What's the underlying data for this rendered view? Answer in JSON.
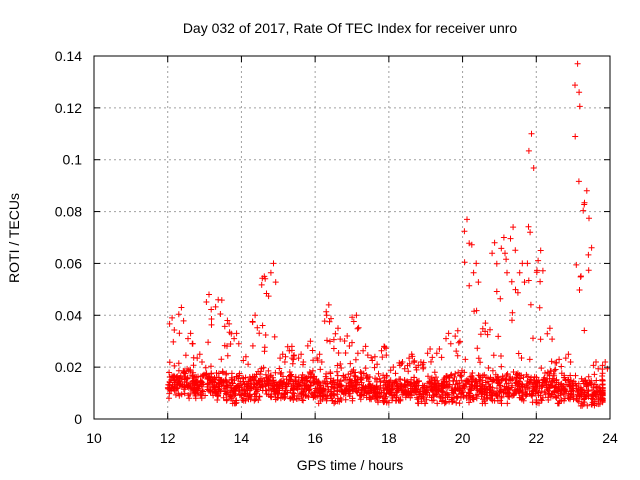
{
  "chart_data": {
    "type": "scatter",
    "title": "Day 032 of 2017, Rate Of TEC Index for receiver unro",
    "xlabel": "GPS time / hours",
    "ylabel": "ROTI / TECUs",
    "xlim": [
      10,
      24
    ],
    "ylim": [
      0,
      0.14
    ],
    "xticks": [
      "10",
      "12",
      "14",
      "16",
      "18",
      "20",
      "22",
      "24"
    ],
    "yticks": [
      "0",
      "0.02",
      "0.04",
      "0.06",
      "0.08",
      "0.1",
      "0.12",
      "0.14"
    ],
    "grid": true,
    "marker": "+",
    "color": "#ff0000",
    "profile_hours": [
      12.0,
      12.25,
      12.5,
      12.75,
      13.0,
      13.25,
      13.5,
      13.75,
      14.0,
      14.25,
      14.5,
      14.75,
      15.0,
      15.25,
      15.5,
      15.75,
      16.0,
      16.25,
      16.5,
      16.75,
      17.0,
      17.25,
      17.5,
      17.75,
      18.0,
      18.25,
      18.5,
      18.75,
      19.0,
      19.25,
      19.5,
      19.75,
      20.0,
      20.25,
      20.5,
      20.75,
      21.0,
      21.25,
      21.5,
      21.75,
      22.0,
      22.25,
      22.5,
      22.75,
      23.0,
      23.25,
      23.5,
      23.75
    ],
    "profile_upper_roti": [
      0.039,
      0.043,
      0.033,
      0.025,
      0.048,
      0.046,
      0.038,
      0.033,
      0.024,
      0.04,
      0.055,
      0.06,
      0.025,
      0.028,
      0.025,
      0.03,
      0.025,
      0.044,
      0.035,
      0.032,
      0.04,
      0.028,
      0.024,
      0.028,
      0.02,
      0.022,
      0.025,
      0.022,
      0.027,
      0.027,
      0.033,
      0.034,
      0.077,
      0.06,
      0.037,
      0.068,
      0.07,
      0.074,
      0.06,
      0.11,
      0.065,
      0.035,
      0.023,
      0.025,
      0.137,
      0.088,
      0.022,
      0.022
    ],
    "profile_lower_roti": [
      0.008,
      0.009,
      0.008,
      0.008,
      0.009,
      0.007,
      0.007,
      0.006,
      0.007,
      0.007,
      0.008,
      0.007,
      0.008,
      0.007,
      0.007,
      0.007,
      0.006,
      0.007,
      0.006,
      0.007,
      0.007,
      0.007,
      0.006,
      0.006,
      0.007,
      0.007,
      0.007,
      0.006,
      0.007,
      0.006,
      0.006,
      0.006,
      0.006,
      0.007,
      0.006,
      0.007,
      0.006,
      0.007,
      0.007,
      0.006,
      0.006,
      0.007,
      0.006,
      0.007,
      0.005,
      0.005,
      0.005,
      0.006
    ],
    "density_per_bin": 40
  }
}
